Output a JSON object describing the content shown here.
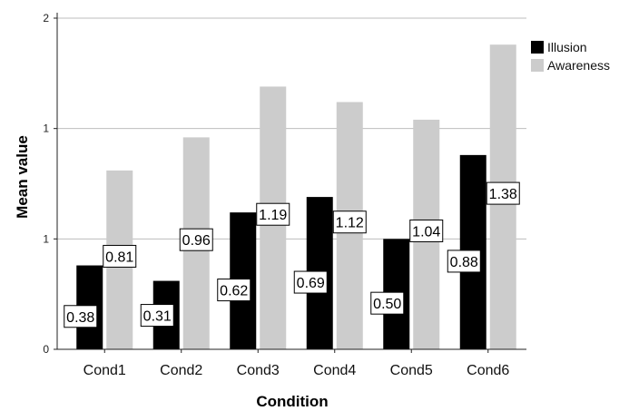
{
  "chart_data": {
    "type": "bar",
    "title": "",
    "xlabel": "Condition",
    "ylabel": "Mean value",
    "categories": [
      "Cond1",
      "Cond2",
      "Cond3",
      "Cond4",
      "Cond5",
      "Cond6"
    ],
    "series": [
      {
        "name": "Illusion",
        "values": [
          0.38,
          0.31,
          0.62,
          0.69,
          0.5,
          0.88
        ],
        "labels": [
          "0.38",
          "0.31",
          "0.62",
          "0.69",
          "0.50",
          "0.88"
        ],
        "color": "#000000"
      },
      {
        "name": "Awareness",
        "values": [
          0.81,
          0.96,
          1.19,
          1.12,
          1.04,
          1.38
        ],
        "labels": [
          "0.81",
          "0.96",
          "1.19",
          "1.12",
          "1.04",
          "1.38"
        ],
        "color": "#cccccc"
      }
    ],
    "ylim": [
      0,
      1.5
    ],
    "yticks": [
      {
        "value": 0,
        "label": "0"
      },
      {
        "value": 0.5,
        "label": "1"
      },
      {
        "value": 1.0,
        "label": "1"
      },
      {
        "value": 1.5,
        "label": "2"
      }
    ],
    "grid": true,
    "legend_position": "top-right"
  }
}
